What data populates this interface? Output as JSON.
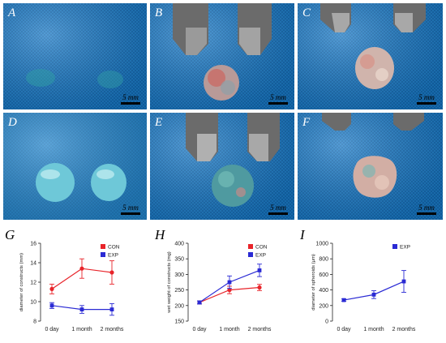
{
  "panels": [
    {
      "label": "A",
      "scale": "5 mm"
    },
    {
      "label": "B",
      "scale": "5 mm"
    },
    {
      "label": "C",
      "scale": "5 mm"
    },
    {
      "label": "D",
      "scale": "5 mm"
    },
    {
      "label": "E",
      "scale": "5 mm"
    },
    {
      "label": "F",
      "scale": "5 mm"
    }
  ],
  "chart_labels": [
    "G",
    "H",
    "I"
  ],
  "colors": {
    "con": "#e8242a",
    "exp": "#2a2ad4",
    "fabric": "#1a78c4",
    "fabric_dark": "#0e5aa0"
  },
  "chart_data": [
    {
      "type": "line",
      "categories": [
        "0 day",
        "1 month",
        "2 months"
      ],
      "ylabel": "diameter of constructs (mm)",
      "ylim": [
        8,
        16
      ],
      "yticks": [
        8,
        10,
        12,
        14,
        16
      ],
      "legend": "top-right",
      "series": [
        {
          "name": "CON",
          "values": [
            11.3,
            13.4,
            13.0
          ],
          "errors": [
            0.5,
            1.0,
            1.2
          ]
        },
        {
          "name": "EXP",
          "values": [
            9.6,
            9.2,
            9.2
          ],
          "errors": [
            0.3,
            0.4,
            0.6
          ]
        }
      ]
    },
    {
      "type": "line",
      "categories": [
        "0 day",
        "1 month",
        "2 months"
      ],
      "ylabel": "wet weight of constructs (mg)",
      "ylim": [
        150,
        400
      ],
      "yticks": [
        150,
        200,
        250,
        300,
        350,
        400
      ],
      "legend": "top-right",
      "series": [
        {
          "name": "CON",
          "values": [
            210,
            250,
            258
          ],
          "errors": [
            5,
            12,
            10
          ]
        },
        {
          "name": "EXP",
          "values": [
            210,
            275,
            313
          ],
          "errors": [
            5,
            20,
            20
          ]
        }
      ]
    },
    {
      "type": "line",
      "categories": [
        "0 day",
        "1 month",
        "2 months"
      ],
      "ylabel": "diameter of spheroids (μm)",
      "ylim": [
        0,
        1000
      ],
      "yticks": [
        0,
        200,
        400,
        600,
        800,
        1000
      ],
      "legend": "top-right",
      "series": [
        {
          "name": "EXP",
          "values": [
            270,
            340,
            510
          ],
          "errors": [
            15,
            50,
            140
          ]
        }
      ]
    }
  ]
}
